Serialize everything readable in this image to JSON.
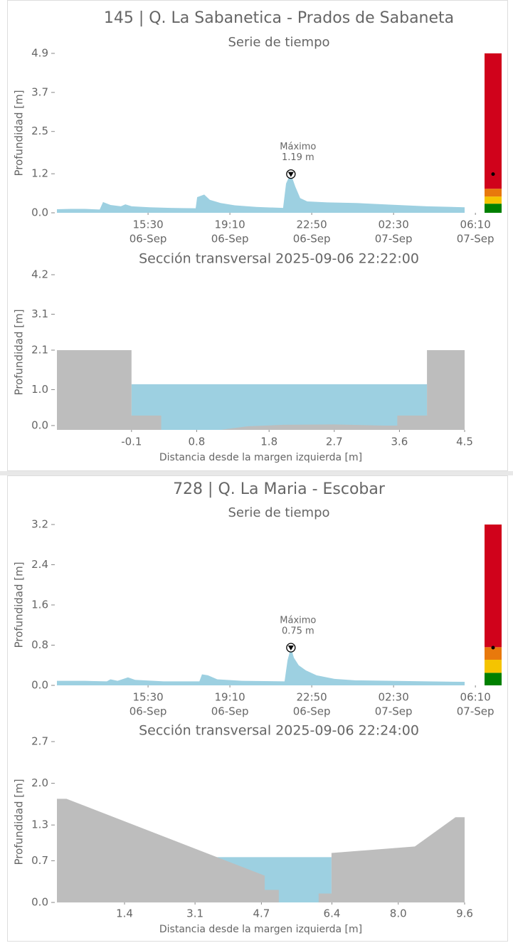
{
  "chart_data": [
    {
      "type": "area",
      "title": "145 | Q. La Sabanetica - Prados de Sabaneta",
      "subtitle": "Serie de tiempo",
      "ylabel": "Profundidad [m]",
      "xlim": [
        "06-Sep 11:25",
        "07-Sep 05:41"
      ],
      "xticks": [
        {
          "value": "06-Sep 15:30",
          "label": [
            "15:30",
            "06-Sep"
          ]
        },
        {
          "value": "06-Sep 19:10",
          "label": [
            "19:10",
            "06-Sep"
          ]
        },
        {
          "value": "06-Sep 22:50",
          "label": [
            "22:50",
            "06-Sep"
          ]
        },
        {
          "value": "07-Sep 02:30",
          "label": [
            "02:30",
            "07-Sep"
          ]
        },
        {
          "value": "07-Sep 06:10",
          "label": [
            "06:10",
            "07-Sep"
          ]
        }
      ],
      "ylim": [
        0,
        4.9
      ],
      "yticks": [
        {
          "value": 0,
          "label": "0.0"
        },
        1.2,
        2.5,
        3.7,
        4.9
      ],
      "series": [
        {
          "color": "#9dd0e1",
          "x": [
            "06-Sep 11:25",
            "06-Sep 12:03",
            "06-Sep 12:41",
            "06-Sep 13:20",
            "06-Sep 13:29",
            "06-Sep 13:49",
            "06-Sep 14:17",
            "06-Sep 14:29",
            "06-Sep 14:46",
            "06-Sep 15:34",
            "06-Sep 16:31",
            "06-Sep 17:38",
            "06-Sep 17:42",
            "06-Sep 18:01",
            "06-Sep 18:16",
            "06-Sep 18:45",
            "06-Sep 19:23",
            "06-Sep 20:21",
            "06-Sep 21:33",
            "06-Sep 21:41",
            "06-Sep 21:47",
            "06-Sep 21:54",
            "06-Sep 22:06",
            "06-Sep 22:19",
            "06-Sep 22:38",
            "06-Sep 23:32",
            "07-Sep 00:49",
            "07-Sep 02:24",
            "07-Sep 04:00",
            "07-Sep 05:41"
          ],
          "values": [
            0.11,
            0.12,
            0.12,
            0.1,
            0.33,
            0.24,
            0.2,
            0.26,
            0.2,
            0.17,
            0.15,
            0.14,
            0.48,
            0.56,
            0.4,
            0.3,
            0.23,
            0.18,
            0.15,
            0.9,
            1.05,
            1.19,
            0.8,
            0.45,
            0.35,
            0.32,
            0.3,
            0.25,
            0.2,
            0.17
          ]
        }
      ],
      "annotation": {
        "text": [
          "Máximo",
          "1.19 m"
        ],
        "x": "06-Sep 21:54",
        "value": 1.19
      },
      "levels": [
        {
          "color": "#008000",
          "value": 0.28
        },
        {
          "color": "#f5c400",
          "value": 0.5
        },
        {
          "color": "#e8790c",
          "value": 0.74
        },
        {
          "color": "#d0021b",
          "value": 4.9
        }
      ]
    },
    {
      "type": "area",
      "title": "Sección transversal 2025-09-06 22:22:00",
      "xlabel": "Distancia desde la margen izquierda [m]",
      "ylabel": "Profundidad [m]",
      "xlim": [
        -1.13,
        4.5
      ],
      "xticks": [
        -0.1,
        0.8,
        1.8,
        2.7,
        3.6,
        4.5
      ],
      "ylim": [
        -0.12,
        4.2
      ],
      "yticks": [
        {
          "value": 0,
          "label": "0.0"
        },
        {
          "value": 1,
          "label": "1.0"
        },
        2.1,
        3.1,
        4.2
      ],
      "series": [
        {
          "color": "#9dd0e1",
          "x": [
            -0.1,
            3.98
          ],
          "values": [
            1.15,
            1.15
          ]
        },
        {
          "color": "#bdbdbd",
          "x": [
            -1.13,
            -0.1,
            -0.1,
            0.31,
            0.31,
            1.13,
            1.5,
            2.0,
            2.7,
            3.39,
            3.57,
            3.57,
            3.98,
            3.98,
            4.5
          ],
          "values": [
            2.1,
            2.1,
            0.28,
            0.28,
            -0.12,
            -0.12,
            -0.02,
            0.02,
            0.03,
            0.0,
            0.0,
            0.28,
            0.28,
            2.1,
            2.1
          ]
        }
      ]
    },
    {
      "type": "area",
      "title": "728 | Q. La Maria - Escobar",
      "subtitle": "Serie de tiempo",
      "ylabel": "Profundidad [m]",
      "xlim": [
        "06-Sep 11:25",
        "07-Sep 05:41"
      ],
      "xticks": [
        {
          "value": "06-Sep 15:30",
          "label": [
            "15:30",
            "06-Sep"
          ]
        },
        {
          "value": "06-Sep 19:10",
          "label": [
            "19:10",
            "06-Sep"
          ]
        },
        {
          "value": "06-Sep 22:50",
          "label": [
            "22:50",
            "06-Sep"
          ]
        },
        {
          "value": "07-Sep 02:30",
          "label": [
            "02:30",
            "07-Sep"
          ]
        },
        {
          "value": "07-Sep 06:10",
          "label": [
            "06:10",
            "07-Sep"
          ]
        }
      ],
      "ylim": [
        0,
        3.2
      ],
      "yticks": [
        {
          "value": 0,
          "label": "0.0"
        },
        0.8,
        1.6,
        2.4,
        3.2
      ],
      "series": [
        {
          "color": "#9dd0e1",
          "x": [
            "06-Sep 11:25",
            "06-Sep 12:41",
            "06-Sep 13:39",
            "06-Sep 13:49",
            "06-Sep 14:08",
            "06-Sep 14:36",
            "06-Sep 14:55",
            "06-Sep 16:12",
            "06-Sep 17:48",
            "06-Sep 17:55",
            "06-Sep 18:11",
            "06-Sep 18:36",
            "06-Sep 19:43",
            "06-Sep 21:37",
            "06-Sep 21:45",
            "06-Sep 21:54",
            "06-Sep 22:02",
            "06-Sep 22:15",
            "06-Sep 22:34",
            "06-Sep 23:03",
            "06-Sep 23:51",
            "07-Sep 00:49",
            "07-Sep 02:24",
            "07-Sep 04:00",
            "07-Sep 05:41"
          ],
          "values": [
            0.09,
            0.09,
            0.08,
            0.12,
            0.09,
            0.16,
            0.11,
            0.08,
            0.08,
            0.22,
            0.2,
            0.12,
            0.09,
            0.08,
            0.5,
            0.75,
            0.55,
            0.4,
            0.3,
            0.2,
            0.13,
            0.1,
            0.09,
            0.08,
            0.07
          ]
        }
      ],
      "annotation": {
        "text": [
          "Máximo",
          "0.75 m"
        ],
        "x": "06-Sep 21:54",
        "value": 0.75
      },
      "levels": [
        {
          "color": "#008000",
          "value": 0.25
        },
        {
          "color": "#f5c400",
          "value": 0.51
        },
        {
          "color": "#e8790c",
          "value": 0.76
        },
        {
          "color": "#d0021b",
          "value": 3.2
        }
      ]
    },
    {
      "type": "area",
      "title": "Sección transversal 2025-09-06 22:24:00",
      "xlabel": "Distancia desde la margen izquierda [m]",
      "ylabel": "Profundidad [m]",
      "xlim": [
        -0.23,
        9.6
      ],
      "xticks": [
        1.4,
        3.1,
        4.7,
        6.4,
        {
          "value": 8,
          "label": "8.0"
        },
        9.6
      ],
      "ylim": [
        0,
        2.7
      ],
      "yticks": [
        {
          "value": 0,
          "label": "0.0"
        },
        0.7,
        1.3,
        {
          "value": 2,
          "label": "2.0"
        },
        2.7
      ],
      "series": [
        {
          "color": "#9dd0e1",
          "x": [
            3.5,
            6.39
          ],
          "values": [
            0.76,
            0.76
          ]
        },
        {
          "color": "#bdbdbd",
          "x": [
            -0.23,
            0.0,
            4.78,
            4.78,
            5.12,
            5.12,
            6.08,
            6.08,
            6.39,
            6.39,
            8.4,
            9.38,
            9.6
          ],
          "values": [
            1.74,
            1.74,
            0.45,
            0.21,
            0.21,
            0.0,
            0.0,
            0.15,
            0.15,
            0.83,
            0.94,
            1.43,
            1.43
          ]
        }
      ]
    }
  ]
}
